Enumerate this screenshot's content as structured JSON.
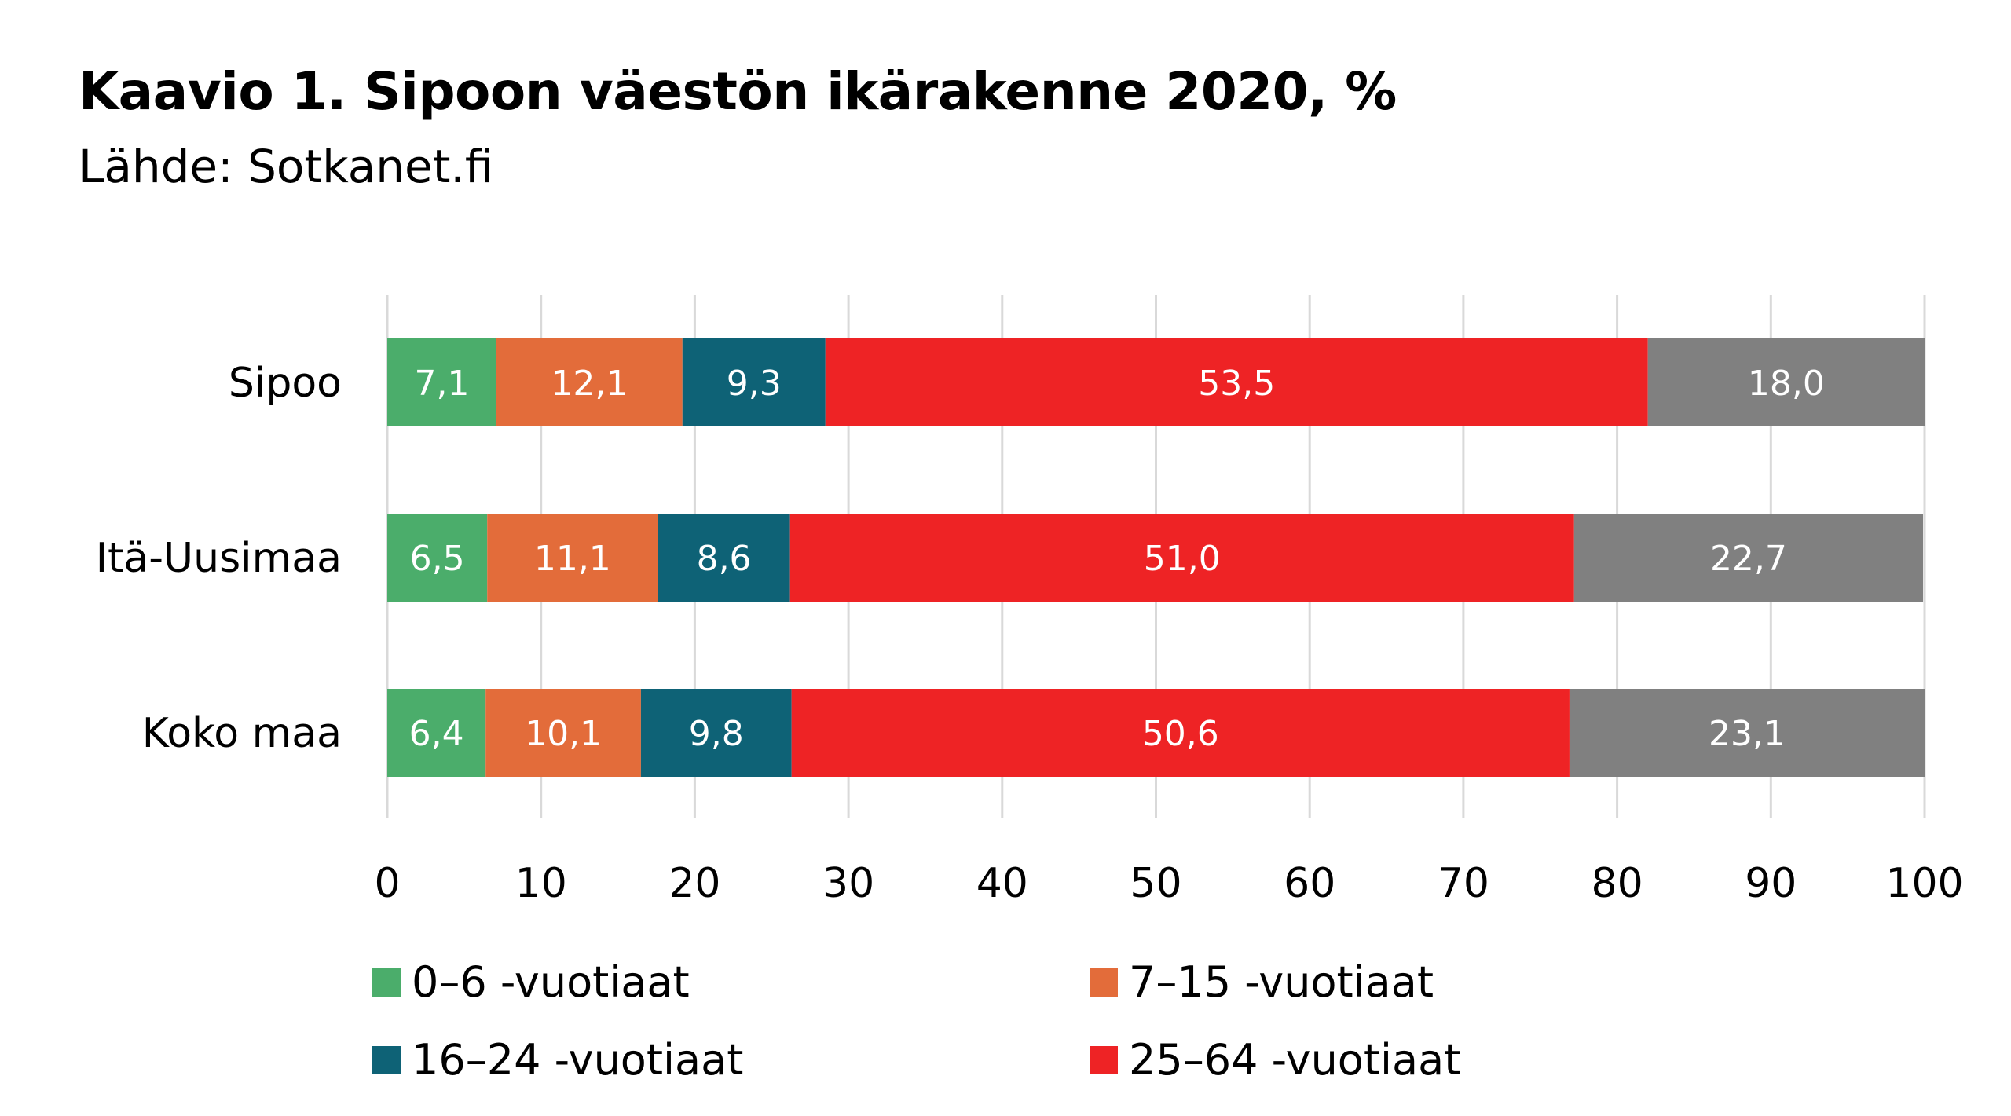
{
  "chart_data": {
    "type": "bar",
    "orientation": "horizontal",
    "stacked": true,
    "title": "Kaavio 1. Sipoon väestön ikärakenne 2020, %",
    "subtitle": "Lähde: Sotkanet.fi",
    "categories": [
      "Sipoo",
      "Itä-Uusimaa",
      "Koko maa"
    ],
    "series": [
      {
        "name": "0–6 -vuotiaat",
        "color": "#4bad6b",
        "values": [
          7.1,
          6.5,
          6.4
        ],
        "labels": [
          "7,1",
          "6,5",
          "6,4"
        ]
      },
      {
        "name": "7–15 -vuotiaat",
        "color": "#e36c3a",
        "values": [
          12.1,
          11.1,
          10.1
        ],
        "labels": [
          "12,1",
          "11,1",
          "10,1"
        ]
      },
      {
        "name": "16–24 -vuotiaat",
        "color": "#0e6276",
        "values": [
          9.3,
          8.6,
          9.8
        ],
        "labels": [
          "9,3",
          "8,6",
          "9,8"
        ]
      },
      {
        "name": "25–64 -vuotiaat",
        "color": "#ee2325",
        "values": [
          53.5,
          51.0,
          50.6
        ],
        "labels": [
          "53,5",
          "51,0",
          "50,6"
        ]
      },
      {
        "name": "",
        "color": "#808080",
        "values": [
          18.0,
          22.7,
          23.1
        ],
        "labels": [
          "18,0",
          "22,7",
          "23,1"
        ]
      }
    ],
    "x_ticks": [
      "0",
      "10",
      "20",
      "30",
      "40",
      "50",
      "60",
      "70",
      "80",
      "90",
      "100"
    ],
    "xlim": [
      0,
      100
    ],
    "grid": "vertical",
    "legend": "bottom, two columns"
  }
}
